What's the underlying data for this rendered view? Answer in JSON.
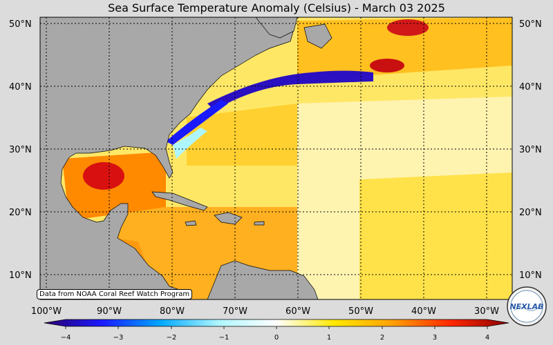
{
  "title": "Sea Surface Temperature Anomaly (Celsius) - March 03 2025",
  "credit": "Data from NOAA Coral Reef Watch Program",
  "lat_labels": [
    "50°N",
    "40°N",
    "30°N",
    "20°N",
    "10°N"
  ],
  "lon_labels": [
    "100°W",
    "90°W",
    "80°W",
    "70°W",
    "60°W",
    "50°W",
    "40°W",
    "30°W"
  ],
  "colorbar": {
    "ticks": [
      "−4",
      "−3",
      "−2",
      "−1",
      "0",
      "1",
      "2",
      "3",
      "4"
    ],
    "min": -4,
    "max": 4,
    "colors": [
      "#2a0070",
      "#1a1aff",
      "#00a8ff",
      "#aef6ff",
      "#ffffff",
      "#ffe800",
      "#ffa000",
      "#ff2800",
      "#8b0000"
    ]
  },
  "logo_text": "NEXLAB",
  "colors": {
    "land": "#a8a8a8",
    "warm": "#ffd400",
    "hot": "#e01010",
    "cold": "#2a10c0"
  }
}
